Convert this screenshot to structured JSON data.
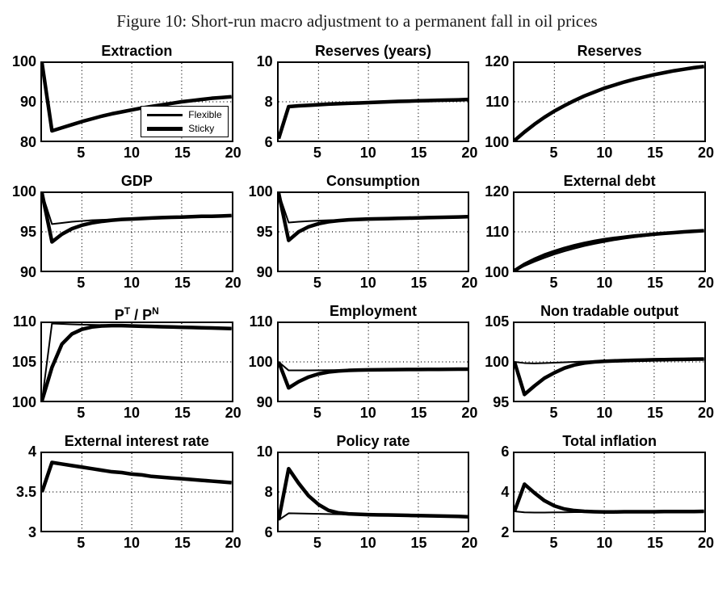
{
  "figure_title": "Figure 10: Short-run macro adjustment to a permanent fall in oil prices",
  "line_color": "#000000",
  "background_color": "#ffffff",
  "legend_labels": [
    "Flexible",
    "Sticky"
  ],
  "xlim": [
    1,
    20
  ],
  "xticks": [
    5,
    10,
    15,
    20
  ],
  "x_years": [
    1,
    2,
    3,
    4,
    5,
    6,
    7,
    8,
    9,
    10,
    11,
    12,
    13,
    14,
    15,
    16,
    17,
    18,
    19,
    20
  ],
  "chart_data": [
    {
      "type": "line",
      "title": "Extraction",
      "ylim": [
        80,
        100
      ],
      "yticks": [
        80,
        90,
        100
      ],
      "grid": true,
      "show_legend": true,
      "legend_position": "inside-right",
      "series": [
        {
          "name": "Flexible",
          "linewidth": 2,
          "values": [
            100,
            82.5,
            83.3,
            84.1,
            84.9,
            85.6,
            86.3,
            86.9,
            87.4,
            87.9,
            88.4,
            88.8,
            89.2,
            89.6,
            90.0,
            90.3,
            90.6,
            90.9,
            91.1,
            91.3
          ]
        },
        {
          "name": "Sticky",
          "linewidth": 4.5,
          "values": [
            100,
            82.5,
            83.3,
            84.1,
            84.9,
            85.6,
            86.3,
            86.9,
            87.4,
            87.9,
            88.4,
            88.8,
            89.2,
            89.6,
            90.0,
            90.3,
            90.6,
            90.9,
            91.1,
            91.3
          ]
        }
      ]
    },
    {
      "type": "line",
      "title": "Reserves (years)",
      "ylim": [
        6,
        10
      ],
      "yticks": [
        6,
        8,
        10
      ],
      "grid": true,
      "series": [
        {
          "name": "Flexible",
          "linewidth": 2,
          "values": [
            6.1,
            7.75,
            7.79,
            7.82,
            7.85,
            7.88,
            7.9,
            7.92,
            7.94,
            7.96,
            7.98,
            8.0,
            8.02,
            8.03,
            8.05,
            8.06,
            8.08,
            8.09,
            8.1,
            8.12
          ]
        },
        {
          "name": "Sticky",
          "linewidth": 4.5,
          "values": [
            6.1,
            7.75,
            7.79,
            7.82,
            7.85,
            7.88,
            7.9,
            7.92,
            7.94,
            7.96,
            7.98,
            8.0,
            8.02,
            8.03,
            8.05,
            8.06,
            8.08,
            8.09,
            8.1,
            8.12
          ]
        }
      ]
    },
    {
      "type": "line",
      "title": "Reserves",
      "ylim": [
        100,
        120
      ],
      "yticks": [
        100,
        110,
        120
      ],
      "grid": true,
      "series": [
        {
          "name": "Flexible",
          "linewidth": 2,
          "values": [
            100,
            102.2,
            104.2,
            106.0,
            107.6,
            109.0,
            110.3,
            111.5,
            112.5,
            113.5,
            114.3,
            115.1,
            115.8,
            116.4,
            117.0,
            117.5,
            118.0,
            118.4,
            118.8,
            119.1
          ]
        },
        {
          "name": "Sticky",
          "linewidth": 4.5,
          "values": [
            100,
            102.2,
            104.2,
            106.0,
            107.6,
            109.0,
            110.3,
            111.5,
            112.5,
            113.5,
            114.3,
            115.1,
            115.8,
            116.4,
            117.0,
            117.5,
            118.0,
            118.4,
            118.8,
            119.1
          ]
        }
      ]
    },
    {
      "type": "line",
      "title": "GDP",
      "ylim": [
        90,
        100
      ],
      "yticks": [
        90,
        95,
        100
      ],
      "grid": true,
      "series": [
        {
          "name": "Flexible",
          "linewidth": 2,
          "values": [
            100,
            96.0,
            96.15,
            96.3,
            96.4,
            96.5,
            96.55,
            96.6,
            96.65,
            96.7,
            96.75,
            96.8,
            96.85,
            96.9,
            96.9,
            96.95,
            97.0,
            97.0,
            97.05,
            97.1
          ]
        },
        {
          "name": "Sticky",
          "linewidth": 4.5,
          "values": [
            100,
            93.7,
            94.7,
            95.4,
            95.85,
            96.15,
            96.35,
            96.5,
            96.6,
            96.65,
            96.72,
            96.78,
            96.83,
            96.88,
            96.9,
            96.95,
            97.0,
            97.0,
            97.05,
            97.1
          ]
        }
      ]
    },
    {
      "type": "line",
      "title": "Consumption",
      "ylim": [
        90,
        100
      ],
      "yticks": [
        90,
        95,
        100
      ],
      "grid": true,
      "series": [
        {
          "name": "Flexible",
          "linewidth": 2,
          "values": [
            100,
            96.2,
            96.3,
            96.38,
            96.44,
            96.5,
            96.54,
            96.58,
            96.62,
            96.65,
            96.68,
            96.71,
            96.74,
            96.77,
            96.8,
            96.83,
            96.86,
            96.89,
            96.92,
            96.95
          ]
        },
        {
          "name": "Sticky",
          "linewidth": 4.5,
          "values": [
            100,
            93.9,
            95.0,
            95.65,
            96.05,
            96.3,
            96.45,
            96.55,
            96.6,
            96.65,
            96.68,
            96.71,
            96.74,
            96.77,
            96.8,
            96.83,
            96.86,
            96.89,
            96.92,
            96.95
          ]
        }
      ]
    },
    {
      "type": "line",
      "title": "External debt",
      "ylim": [
        100,
        120
      ],
      "yticks": [
        100,
        110,
        120
      ],
      "grid": true,
      "series": [
        {
          "name": "Flexible",
          "linewidth": 2,
          "values": [
            100,
            101.2,
            102.3,
            103.3,
            104.2,
            105.0,
            105.7,
            106.35,
            106.9,
            107.4,
            107.85,
            108.25,
            108.6,
            108.9,
            109.2,
            109.45,
            109.7,
            109.9,
            110.1,
            110.25
          ]
        },
        {
          "name": "Sticky",
          "linewidth": 4.5,
          "values": [
            100,
            101.6,
            102.9,
            104.0,
            104.9,
            105.7,
            106.4,
            107.0,
            107.5,
            107.95,
            108.3,
            108.6,
            108.9,
            109.15,
            109.4,
            109.6,
            109.8,
            110.0,
            110.15,
            110.3
          ]
        }
      ]
    },
    {
      "type": "line",
      "title": "P^T / P^N",
      "ylim": [
        100,
        110
      ],
      "yticks": [
        100,
        105,
        110
      ],
      "grid": true,
      "series": [
        {
          "name": "Flexible",
          "linewidth": 2,
          "values": [
            100,
            109.95,
            109.9,
            109.85,
            109.8,
            109.78,
            109.75,
            109.72,
            109.68,
            109.65,
            109.6,
            109.57,
            109.53,
            109.5,
            109.47,
            109.44,
            109.4,
            109.37,
            109.34,
            109.3
          ]
        },
        {
          "name": "Sticky",
          "linewidth": 4.5,
          "values": [
            100,
            104.3,
            107.3,
            108.6,
            109.2,
            109.5,
            109.63,
            109.68,
            109.67,
            109.64,
            109.6,
            109.57,
            109.53,
            109.5,
            109.47,
            109.44,
            109.4,
            109.37,
            109.34,
            109.3
          ]
        }
      ]
    },
    {
      "type": "line",
      "title": "Employment",
      "ylim": [
        90,
        110
      ],
      "yticks": [
        90,
        100,
        110
      ],
      "grid": true,
      "series": [
        {
          "name": "Flexible",
          "linewidth": 2,
          "values": [
            100,
            97.8,
            97.8,
            97.82,
            97.85,
            97.87,
            97.9,
            97.92,
            97.94,
            97.96,
            97.98,
            98.0,
            98.02,
            98.04,
            98.05,
            98.07,
            98.08,
            98.1,
            98.12,
            98.13
          ]
        },
        {
          "name": "Sticky",
          "linewidth": 4.5,
          "values": [
            100,
            93.3,
            94.9,
            96.1,
            96.9,
            97.4,
            97.65,
            97.8,
            97.88,
            97.94,
            97.98,
            98.0,
            98.02,
            98.04,
            98.05,
            98.07,
            98.08,
            98.1,
            98.12,
            98.13
          ]
        }
      ]
    },
    {
      "type": "line",
      "title": "Non tradable output",
      "ylim": [
        95,
        105
      ],
      "yticks": [
        95,
        100,
        105
      ],
      "grid": true,
      "series": [
        {
          "name": "Flexible",
          "linewidth": 2,
          "values": [
            100,
            99.85,
            99.8,
            99.85,
            99.9,
            99.95,
            100.0,
            100.05,
            100.1,
            100.13,
            100.16,
            100.19,
            100.22,
            100.25,
            100.27,
            100.29,
            100.31,
            100.33,
            100.35,
            100.37
          ]
        },
        {
          "name": "Sticky",
          "linewidth": 4.5,
          "values": [
            100,
            95.8,
            96.9,
            97.9,
            98.6,
            99.2,
            99.6,
            99.85,
            100.0,
            100.08,
            100.13,
            100.17,
            100.21,
            100.24,
            100.27,
            100.29,
            100.31,
            100.33,
            100.35,
            100.37
          ]
        }
      ]
    },
    {
      "type": "line",
      "title": "External interest rate",
      "ylim": [
        3,
        4
      ],
      "yticks": [
        3,
        3.5,
        4
      ],
      "grid": true,
      "series": [
        {
          "name": "Flexible",
          "linewidth": 2,
          "values": [
            3.5,
            3.88,
            3.86,
            3.84,
            3.82,
            3.8,
            3.78,
            3.76,
            3.75,
            3.73,
            3.72,
            3.7,
            3.69,
            3.68,
            3.67,
            3.66,
            3.65,
            3.64,
            3.63,
            3.62
          ]
        },
        {
          "name": "Sticky",
          "linewidth": 4.5,
          "values": [
            3.5,
            3.88,
            3.86,
            3.84,
            3.82,
            3.8,
            3.78,
            3.76,
            3.75,
            3.73,
            3.72,
            3.7,
            3.69,
            3.68,
            3.67,
            3.66,
            3.65,
            3.64,
            3.63,
            3.62
          ]
        }
      ]
    },
    {
      "type": "line",
      "title": "Policy rate",
      "ylim": [
        6,
        10
      ],
      "yticks": [
        6,
        8,
        10
      ],
      "grid": true,
      "series": [
        {
          "name": "Flexible",
          "linewidth": 2,
          "values": [
            6.55,
            6.9,
            6.89,
            6.88,
            6.87,
            6.86,
            6.85,
            6.84,
            6.83,
            6.82,
            6.81,
            6.8,
            6.79,
            6.78,
            6.77,
            6.76,
            6.75,
            6.74,
            6.73,
            6.72
          ]
        },
        {
          "name": "Sticky",
          "linewidth": 4.5,
          "values": [
            6.55,
            9.2,
            8.45,
            7.8,
            7.35,
            7.05,
            6.92,
            6.87,
            6.85,
            6.83,
            6.82,
            6.81,
            6.8,
            6.79,
            6.78,
            6.77,
            6.76,
            6.75,
            6.74,
            6.72
          ]
        }
      ]
    },
    {
      "type": "line",
      "title": "Total inflation",
      "ylim": [
        2,
        6
      ],
      "yticks": [
        2,
        4,
        6
      ],
      "grid": true,
      "series": [
        {
          "name": "Flexible",
          "linewidth": 2,
          "values": [
            3.0,
            2.95,
            2.94,
            2.94,
            2.95,
            2.95,
            2.96,
            2.96,
            2.97,
            2.97,
            2.97,
            2.98,
            2.98,
            2.98,
            2.98,
            2.99,
            2.99,
            2.99,
            2.99,
            3.0
          ]
        },
        {
          "name": "Sticky",
          "linewidth": 4.5,
          "values": [
            3.0,
            4.4,
            3.95,
            3.55,
            3.28,
            3.12,
            3.04,
            3.0,
            2.98,
            2.97,
            2.97,
            2.98,
            2.98,
            2.98,
            2.98,
            2.99,
            2.99,
            2.99,
            2.99,
            3.0
          ]
        }
      ]
    }
  ]
}
